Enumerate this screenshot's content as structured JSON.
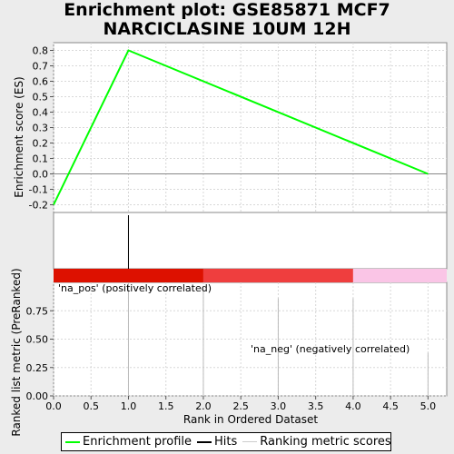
{
  "title_line1": "Enrichment plot: GSE85871 MCF7",
  "title_line2": "NARCICLASINE 10UM 12H",
  "chart_data": {
    "type": "line",
    "es_profile": {
      "name": "Enrichment profile",
      "color": "#00ff00",
      "x": [
        0,
        1,
        5
      ],
      "y": [
        -0.2,
        0.8,
        0.0
      ]
    },
    "es_axis": {
      "ylabel": "Enrichment score (ES)",
      "ylim": [
        -0.25,
        0.85
      ],
      "ticks": [
        "0.8",
        "0.7",
        "0.6",
        "0.5",
        "0.4",
        "0.3",
        "0.2",
        "0.1",
        "0.0",
        "-0.1",
        "-0.2"
      ],
      "tick_values": [
        0.8,
        0.7,
        0.6,
        0.5,
        0.4,
        0.3,
        0.2,
        0.1,
        0.0,
        -0.1,
        -0.2
      ]
    },
    "hits": {
      "name": "Hits",
      "x": [
        1
      ]
    },
    "bar_segments": [
      {
        "from": 0,
        "to": 2,
        "color": "#dd1100"
      },
      {
        "from": 2,
        "to": 4,
        "color": "#ef3e3e"
      },
      {
        "from": 4,
        "to": 5.25,
        "color": "#fac5e6"
      }
    ],
    "ranking": {
      "name": "Ranking metric scores",
      "ylabel": "Ranked list metric (PreRanked)",
      "ylim": [
        0,
        1
      ],
      "ticks": [
        "0.75",
        "0.50",
        "0.25",
        "0.00"
      ],
      "tick_values": [
        0.75,
        0.5,
        0.25,
        0.0
      ],
      "x": [
        1,
        2,
        3,
        4,
        5
      ],
      "values": [
        1.0,
        0.95,
        0.86,
        0.86,
        0.38
      ]
    },
    "x_axis": {
      "xlabel": "Rank in Ordered Dataset",
      "xlim": [
        0,
        5.25
      ],
      "ticks": [
        "0.0",
        "0.5",
        "1.0",
        "1.5",
        "2.0",
        "2.5",
        "3.0",
        "3.5",
        "4.0",
        "4.5",
        "5.0"
      ],
      "tick_values": [
        0,
        0.5,
        1,
        1.5,
        2,
        2.5,
        3,
        3.5,
        4,
        4.5,
        5
      ]
    },
    "annotations": {
      "pos_label": "'na_pos' (positively correlated)",
      "pos_color": "#cc0000",
      "neg_label": "'na_neg' (negatively correlated)",
      "neg_color": "#0000cc"
    },
    "grid": true,
    "legend_position": "bottom"
  },
  "legend": {
    "items": [
      {
        "label": "Enrichment profile",
        "color": "#00ff00"
      },
      {
        "label": "Hits",
        "color": "#000000"
      },
      {
        "label": "Ranking metric scores",
        "color": "#cccccc"
      }
    ]
  }
}
